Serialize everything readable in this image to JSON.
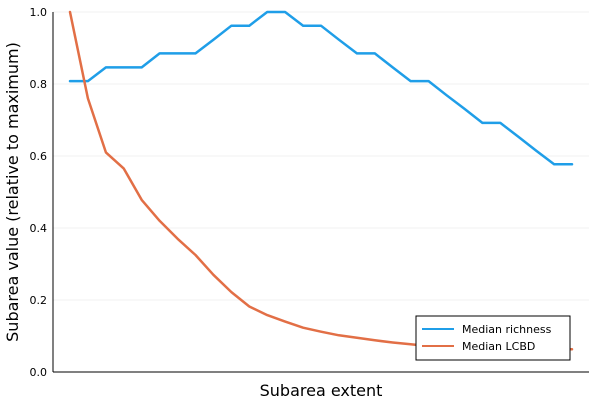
{
  "chart_data": {
    "type": "line",
    "xlabel": "Subarea extent",
    "ylabel": "Subarea value (relative to maximum)",
    "ylim": [
      0,
      1
    ],
    "yticks": [
      0.0,
      0.2,
      0.4,
      0.6,
      0.8,
      1.0
    ],
    "ytick_labels": [
      "0.0",
      "0.2",
      "0.4",
      "0.6",
      "0.8",
      "1.0"
    ],
    "xticks_shown": false,
    "grid": true,
    "legend_position": "bottom-right",
    "series": [
      {
        "name": "Median richness",
        "color": "#1f9ee8",
        "values": [
          0.808,
          0.808,
          0.846,
          0.846,
          0.846,
          0.885,
          0.885,
          0.885,
          0.923,
          0.962,
          0.962,
          1.0,
          1.0,
          0.962,
          0.962,
          0.923,
          0.885,
          0.885,
          0.846,
          0.808,
          0.808,
          0.769,
          0.731,
          0.692,
          0.692,
          0.654,
          0.615,
          0.577,
          0.577
        ]
      },
      {
        "name": "Median LCBD",
        "color": "#e26f46",
        "values": [
          1.0,
          0.76,
          0.61,
          0.565,
          0.478,
          0.42,
          0.37,
          0.325,
          0.27,
          0.222,
          0.182,
          0.158,
          0.14,
          0.123,
          0.112,
          0.102,
          0.095,
          0.088,
          0.082,
          0.077,
          0.072,
          0.068,
          0.066,
          0.065,
          0.064,
          0.064,
          0.063,
          0.063,
          0.063
        ]
      }
    ]
  }
}
